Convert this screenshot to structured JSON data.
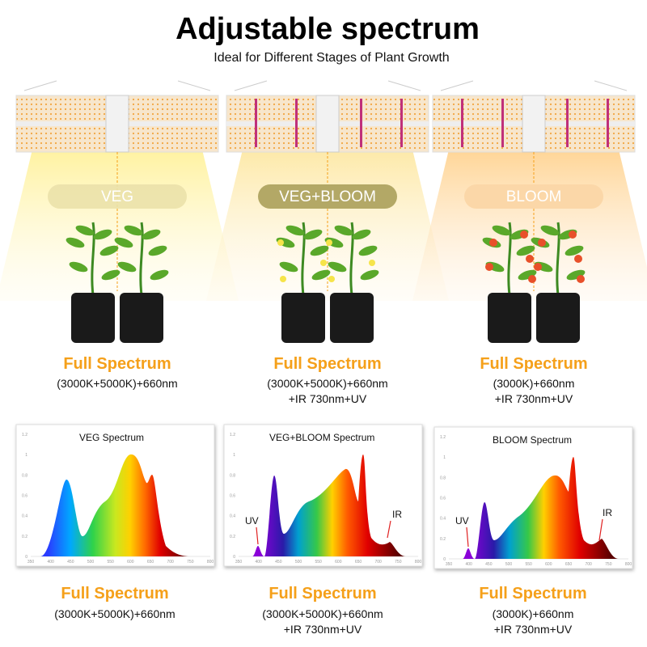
{
  "header": {
    "title": "Adjustable spectrum",
    "subtitle": "Ideal for Different Stages of Plant Growth"
  },
  "stages": [
    {
      "label": "VEG",
      "heading": "Full Spectrum",
      "lines": [
        "(3000K+5000K)+660nm"
      ]
    },
    {
      "label": "VEG+BLOOM",
      "heading": "Full Spectrum",
      "lines": [
        "(3000K+5000K)+660nm",
        "+IR 730nm+UV"
      ]
    },
    {
      "label": "BLOOM",
      "heading": "Full Spectrum",
      "lines": [
        "(3000K)+660nm",
        "+IR 730nm+UV"
      ]
    }
  ],
  "spectra": [
    {
      "title": "VEG Spectrum",
      "xticks": [
        350,
        400,
        450,
        500,
        550,
        600,
        650,
        700,
        750,
        800
      ],
      "yticks": [
        0,
        0.2,
        0.4,
        0.6,
        0.8,
        1,
        1.2
      ],
      "annotations": [],
      "heading": "Full Spectrum",
      "lines": [
        "(3000K+5000K)+660nm"
      ]
    },
    {
      "title": "VEG+BLOOM Spectrum",
      "xticks": [
        350,
        400,
        450,
        500,
        550,
        600,
        650,
        700,
        750,
        800
      ],
      "yticks": [
        0,
        0.2,
        0.4,
        0.6,
        0.8,
        1,
        1.2
      ],
      "annotations": [
        "UV",
        "IR"
      ],
      "heading": "Full Spectrum",
      "lines": [
        "(3000K+5000K)+660nm",
        "+IR 730nm+UV"
      ]
    },
    {
      "title": "BLOOM Spectrum",
      "xticks": [
        350,
        400,
        450,
        500,
        550,
        600,
        650,
        700,
        750,
        800
      ],
      "yticks": [
        0,
        0.2,
        0.4,
        0.6,
        0.8,
        1,
        1.2
      ],
      "annotations": [
        "UV",
        "IR"
      ],
      "heading": "Full Spectrum",
      "lines": [
        "(3000K)+660nm",
        "+IR 730nm+UV"
      ]
    }
  ]
}
